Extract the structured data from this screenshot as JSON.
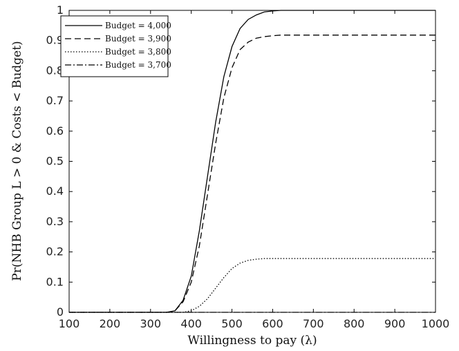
{
  "chart_data": {
    "type": "line",
    "title": "",
    "xlabel": "Willingness to pay (λ)",
    "ylabel": "Pr(NHB Group L > 0 & Costs < Budget)",
    "xlim": [
      100,
      1000
    ],
    "ylim": [
      0,
      1
    ],
    "x_ticks": [
      100,
      200,
      300,
      400,
      500,
      600,
      700,
      800,
      900,
      1000
    ],
    "y_ticks": [
      0,
      0.1,
      0.2,
      0.3,
      0.4,
      0.5,
      0.6,
      0.7,
      0.8,
      0.9,
      1
    ],
    "x_tick_labels": [
      "100",
      "200",
      "300",
      "400",
      "500",
      "600",
      "700",
      "800",
      "900",
      "1000"
    ],
    "y_tick_labels": [
      "0",
      "0.1",
      "0.2",
      "0.3",
      "0.4",
      "0.5",
      "0.6",
      "0.7",
      "0.8",
      "0.9",
      "1"
    ],
    "grid": false,
    "legend_position": "top-left",
    "x": [
      100,
      200,
      300,
      340,
      360,
      380,
      400,
      420,
      440,
      460,
      480,
      500,
      520,
      540,
      560,
      580,
      600,
      620,
      650,
      700,
      800,
      900,
      1000
    ],
    "series": [
      {
        "name": "Budget = 4,000",
        "dash": "solid",
        "color": "#000000",
        "values": [
          0,
          0,
          0,
          0,
          0.005,
          0.04,
          0.12,
          0.27,
          0.45,
          0.63,
          0.78,
          0.88,
          0.94,
          0.97,
          0.985,
          0.995,
          0.998,
          1.0,
          1.0,
          1.0,
          1.0,
          1.0,
          1.0
        ]
      },
      {
        "name": "Budget = 3,900",
        "dash": "dashed",
        "color": "#000000",
        "values": [
          0,
          0,
          0,
          0,
          0.005,
          0.035,
          0.1,
          0.22,
          0.39,
          0.56,
          0.71,
          0.81,
          0.87,
          0.895,
          0.908,
          0.913,
          0.916,
          0.918,
          0.918,
          0.918,
          0.918,
          0.918,
          0.918
        ]
      },
      {
        "name": "Budget = 3,800",
        "dash": "dotted",
        "color": "#000000",
        "values": [
          0,
          0,
          0,
          0,
          0,
          0,
          0.005,
          0.02,
          0.045,
          0.08,
          0.115,
          0.145,
          0.163,
          0.172,
          0.176,
          0.178,
          0.178,
          0.178,
          0.178,
          0.178,
          0.178,
          0.178,
          0.178
        ]
      },
      {
        "name": "Budget = 3,700",
        "dash": "dashdot",
        "color": "#000000",
        "values": [
          0,
          0,
          0,
          0,
          0,
          0,
          0,
          0,
          0,
          0,
          0,
          0,
          0,
          0,
          0,
          0,
          0,
          0,
          0,
          0,
          0,
          0,
          0
        ]
      }
    ]
  }
}
